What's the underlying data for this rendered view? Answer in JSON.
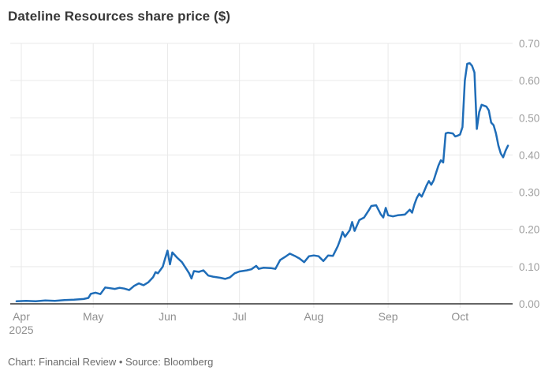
{
  "title": "Dateline Resources share price ($)",
  "footer": "Chart: Financial Review • Source: Bloomberg",
  "colors": {
    "line": "#1f6db8",
    "title": "#383838",
    "grid": "#e9e9e9",
    "axis_line": "#333333",
    "tick_label": "#9e9e9e",
    "footer": "#6b6b6b",
    "background": "#ffffff"
  },
  "chart_data": {
    "type": "line",
    "title": "Dateline Resources share price ($)",
    "xlabel": "",
    "ylabel": "",
    "ylim": [
      0,
      0.7
    ],
    "grid": true,
    "legend_position": "none",
    "y_ticks": [
      {
        "value": 0.0,
        "label": "0.00"
      },
      {
        "value": 0.1,
        "label": "0.10"
      },
      {
        "value": 0.2,
        "label": "0.20"
      },
      {
        "value": 0.3,
        "label": "0.30"
      },
      {
        "value": 0.4,
        "label": "0.40"
      },
      {
        "value": 0.5,
        "label": "0.50"
      },
      {
        "value": 0.6,
        "label": "0.60"
      },
      {
        "value": 0.7,
        "label": "0.70"
      }
    ],
    "x_ticks": [
      {
        "date": "2025-04-01",
        "label": "Apr",
        "sub_label": "2025"
      },
      {
        "date": "2025-05-01",
        "label": "May"
      },
      {
        "date": "2025-06-01",
        "label": "Jun"
      },
      {
        "date": "2025-07-01",
        "label": "Jul"
      },
      {
        "date": "2025-08-01",
        "label": "Aug"
      },
      {
        "date": "2025-09-01",
        "label": "Sep"
      },
      {
        "date": "2025-10-01",
        "label": "Oct"
      }
    ],
    "series": [
      {
        "name": "Dateline Resources share price ($)",
        "points": [
          [
            "2025-03-30",
            0.007
          ],
          [
            "2025-04-03",
            0.008
          ],
          [
            "2025-04-07",
            0.007
          ],
          [
            "2025-04-11",
            0.009
          ],
          [
            "2025-04-15",
            0.008
          ],
          [
            "2025-04-19",
            0.01
          ],
          [
            "2025-04-23",
            0.011
          ],
          [
            "2025-04-27",
            0.013
          ],
          [
            "2025-04-29",
            0.016
          ],
          [
            "2025-04-30",
            0.027
          ],
          [
            "2025-05-02",
            0.03
          ],
          [
            "2025-05-04",
            0.026
          ],
          [
            "2025-05-06",
            0.044
          ],
          [
            "2025-05-08",
            0.042
          ],
          [
            "2025-05-10",
            0.04
          ],
          [
            "2025-05-12",
            0.043
          ],
          [
            "2025-05-14",
            0.041
          ],
          [
            "2025-05-16",
            0.037
          ],
          [
            "2025-05-18",
            0.048
          ],
          [
            "2025-05-20",
            0.055
          ],
          [
            "2025-05-22",
            0.05
          ],
          [
            "2025-05-24",
            0.058
          ],
          [
            "2025-05-26",
            0.072
          ],
          [
            "2025-05-27",
            0.085
          ],
          [
            "2025-05-28",
            0.082
          ],
          [
            "2025-05-30",
            0.1
          ],
          [
            "2025-05-31",
            0.122
          ],
          [
            "2025-06-01",
            0.143
          ],
          [
            "2025-06-02",
            0.106
          ],
          [
            "2025-06-03",
            0.138
          ],
          [
            "2025-06-05",
            0.124
          ],
          [
            "2025-06-07",
            0.112
          ],
          [
            "2025-06-09",
            0.092
          ],
          [
            "2025-06-10",
            0.082
          ],
          [
            "2025-06-11",
            0.068
          ],
          [
            "2025-06-12",
            0.088
          ],
          [
            "2025-06-14",
            0.086
          ],
          [
            "2025-06-16",
            0.09
          ],
          [
            "2025-06-18",
            0.076
          ],
          [
            "2025-06-20",
            0.073
          ],
          [
            "2025-06-23",
            0.07
          ],
          [
            "2025-06-25",
            0.067
          ],
          [
            "2025-06-27",
            0.071
          ],
          [
            "2025-06-29",
            0.082
          ],
          [
            "2025-07-01",
            0.087
          ],
          [
            "2025-07-04",
            0.09
          ],
          [
            "2025-07-06",
            0.093
          ],
          [
            "2025-07-08",
            0.102
          ],
          [
            "2025-07-09",
            0.094
          ],
          [
            "2025-07-11",
            0.097
          ],
          [
            "2025-07-14",
            0.096
          ],
          [
            "2025-07-16",
            0.094
          ],
          [
            "2025-07-18",
            0.118
          ],
          [
            "2025-07-20",
            0.126
          ],
          [
            "2025-07-22",
            0.135
          ],
          [
            "2025-07-24",
            0.129
          ],
          [
            "2025-07-26",
            0.122
          ],
          [
            "2025-07-28",
            0.112
          ],
          [
            "2025-07-30",
            0.128
          ],
          [
            "2025-08-01",
            0.13
          ],
          [
            "2025-08-03",
            0.128
          ],
          [
            "2025-08-05",
            0.115
          ],
          [
            "2025-08-07",
            0.13
          ],
          [
            "2025-08-09",
            0.129
          ],
          [
            "2025-08-11",
            0.155
          ],
          [
            "2025-08-12",
            0.172
          ],
          [
            "2025-08-13",
            0.193
          ],
          [
            "2025-08-14",
            0.18
          ],
          [
            "2025-08-16",
            0.198
          ],
          [
            "2025-08-17",
            0.22
          ],
          [
            "2025-08-18",
            0.196
          ],
          [
            "2025-08-20",
            0.225
          ],
          [
            "2025-08-22",
            0.232
          ],
          [
            "2025-08-24",
            0.252
          ],
          [
            "2025-08-25",
            0.263
          ],
          [
            "2025-08-27",
            0.265
          ],
          [
            "2025-08-29",
            0.24
          ],
          [
            "2025-08-30",
            0.232
          ],
          [
            "2025-08-31",
            0.258
          ],
          [
            "2025-09-01",
            0.238
          ],
          [
            "2025-09-03",
            0.235
          ],
          [
            "2025-09-05",
            0.238
          ],
          [
            "2025-09-08",
            0.24
          ],
          [
            "2025-09-10",
            0.253
          ],
          [
            "2025-09-11",
            0.245
          ],
          [
            "2025-09-12",
            0.268
          ],
          [
            "2025-09-13",
            0.285
          ],
          [
            "2025-09-14",
            0.296
          ],
          [
            "2025-09-15",
            0.288
          ],
          [
            "2025-09-16",
            0.302
          ],
          [
            "2025-09-17",
            0.318
          ],
          [
            "2025-09-18",
            0.33
          ],
          [
            "2025-09-19",
            0.32
          ],
          [
            "2025-09-20",
            0.332
          ],
          [
            "2025-09-21",
            0.352
          ],
          [
            "2025-09-22",
            0.372
          ],
          [
            "2025-09-23",
            0.386
          ],
          [
            "2025-09-24",
            0.38
          ],
          [
            "2025-09-25",
            0.458
          ],
          [
            "2025-09-26",
            0.46
          ],
          [
            "2025-09-28",
            0.458
          ],
          [
            "2025-09-29",
            0.45
          ],
          [
            "2025-09-30",
            0.452
          ],
          [
            "2025-10-01",
            0.455
          ],
          [
            "2025-10-02",
            0.475
          ],
          [
            "2025-10-03",
            0.6
          ],
          [
            "2025-10-04",
            0.645
          ],
          [
            "2025-10-05",
            0.647
          ],
          [
            "2025-10-06",
            0.64
          ],
          [
            "2025-10-07",
            0.622
          ],
          [
            "2025-10-08",
            0.47
          ],
          [
            "2025-10-09",
            0.515
          ],
          [
            "2025-10-10",
            0.535
          ],
          [
            "2025-10-12",
            0.53
          ],
          [
            "2025-10-13",
            0.52
          ],
          [
            "2025-10-14",
            0.487
          ],
          [
            "2025-10-15",
            0.48
          ],
          [
            "2025-10-16",
            0.458
          ],
          [
            "2025-10-17",
            0.425
          ],
          [
            "2025-10-18",
            0.404
          ],
          [
            "2025-10-19",
            0.394
          ],
          [
            "2025-10-20",
            0.412
          ],
          [
            "2025-10-21",
            0.425
          ]
        ]
      }
    ]
  }
}
